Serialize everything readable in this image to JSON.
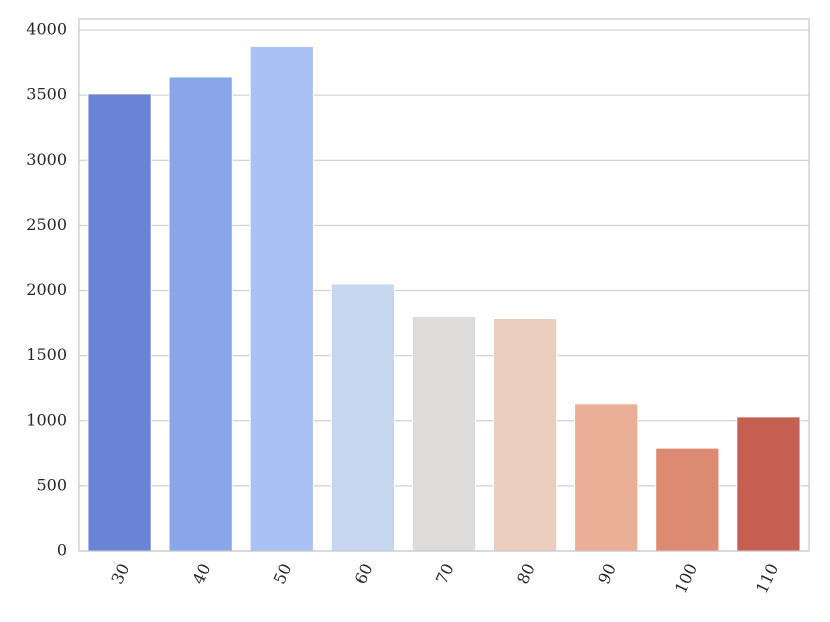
{
  "chart_data": {
    "type": "bar",
    "categories": [
      "30",
      "40",
      "50",
      "60",
      "70",
      "80",
      "90",
      "100",
      "110"
    ],
    "values": [
      3510,
      3640,
      3875,
      2050,
      1800,
      1785,
      1130,
      790,
      1030
    ],
    "colors": [
      "#6b83d4",
      "#8aa6ea",
      "#a9c1f5",
      "#c5d6ee",
      "#dedcdb",
      "#ebcdbd",
      "#eaaf94",
      "#dc8b72",
      "#c45f52"
    ],
    "ylim": [
      0,
      4085
    ],
    "yticks": [
      0,
      500,
      1000,
      1500,
      2000,
      2500,
      3000,
      3500,
      4000
    ],
    "grid": true
  }
}
